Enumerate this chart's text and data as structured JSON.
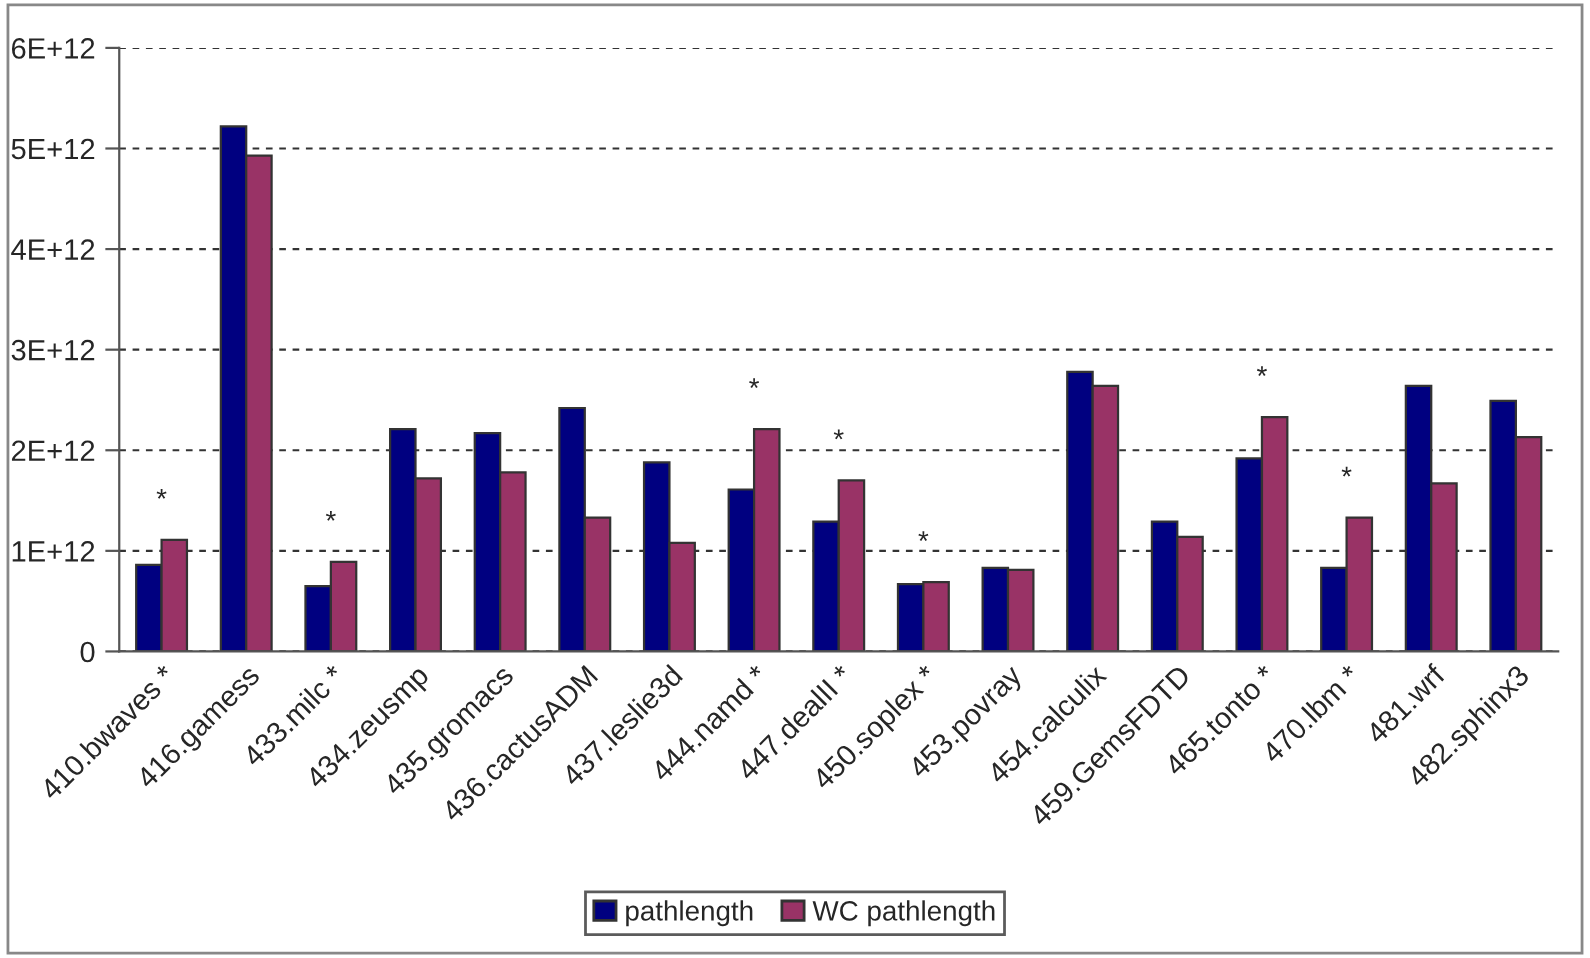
{
  "chart_data": {
    "type": "bar",
    "categories": [
      "410.bwaves *",
      "416.gamess",
      "433.milc *",
      "434.zeusmp",
      "435.gromacs",
      "436.cactusADM",
      "437.leslie3d",
      "444.namd *",
      "447.dealII *",
      "450.soplex *",
      "453.povray",
      "454.calculix",
      "459.GemsFDTD",
      "465.tonto *",
      "470.lbm *",
      "481.wrf",
      "482.sphinx3"
    ],
    "series": [
      {
        "name": "pathlength",
        "color": "#000080",
        "values": [
          860000000000.0,
          5220000000000.0,
          650000000000.0,
          2210000000000.0,
          2170000000000.0,
          2420000000000.0,
          1880000000000.0,
          1610000000000.0,
          1290000000000.0,
          670000000000.0,
          830000000000.0,
          2780000000000.0,
          1290000000000.0,
          1920000000000.0,
          830000000000.0,
          2640000000000.0,
          2490000000000.0
        ]
      },
      {
        "name": "WC pathlength",
        "color": "#993366",
        "values": [
          1110000000000.0,
          4930000000000.0,
          890000000000.0,
          1720000000000.0,
          1780000000000.0,
          1330000000000.0,
          1080000000000.0,
          2210000000000.0,
          1700000000000.0,
          690000000000.0,
          810000000000.0,
          2640000000000.0,
          1140000000000.0,
          2330000000000.0,
          1330000000000.0,
          1670000000000.0,
          2130000000000.0
        ]
      }
    ],
    "ylim": [
      0,
      6000000000000.0
    ],
    "yticks": [
      0,
      {
        "value": 1000000000000.0,
        "label": "1E+12"
      },
      {
        "value": 2000000000000.0,
        "label": "2E+12"
      },
      {
        "value": 3000000000000.0,
        "label": "3E+12"
      },
      {
        "value": 4000000000000.0,
        "label": "4E+12"
      },
      {
        "value": 5000000000000.0,
        "label": "5E+12"
      },
      {
        "value": 6000000000000.0,
        "label": "6E+12"
      }
    ],
    "grid": "y",
    "legend": "bottom",
    "annotations": [
      {
        "text": "*",
        "x": "410.bwaves *",
        "y": 1110000000000.0
      },
      {
        "text": "*",
        "x": "433.milc *",
        "y": 890000000000.0
      },
      {
        "text": "*",
        "x": "444.namd *",
        "y": 2210000000000.0
      },
      {
        "text": "*",
        "x": "447.dealII *",
        "y": 1700000000000.0
      },
      {
        "text": "*",
        "x": "450.soplex *",
        "y": 690000000000.0
      },
      {
        "text": "*",
        "x": "465.tonto *",
        "y": 2330000000000.0
      },
      {
        "text": "*",
        "x": "470.lbm *",
        "y": 1330000000000.0
      }
    ]
  }
}
